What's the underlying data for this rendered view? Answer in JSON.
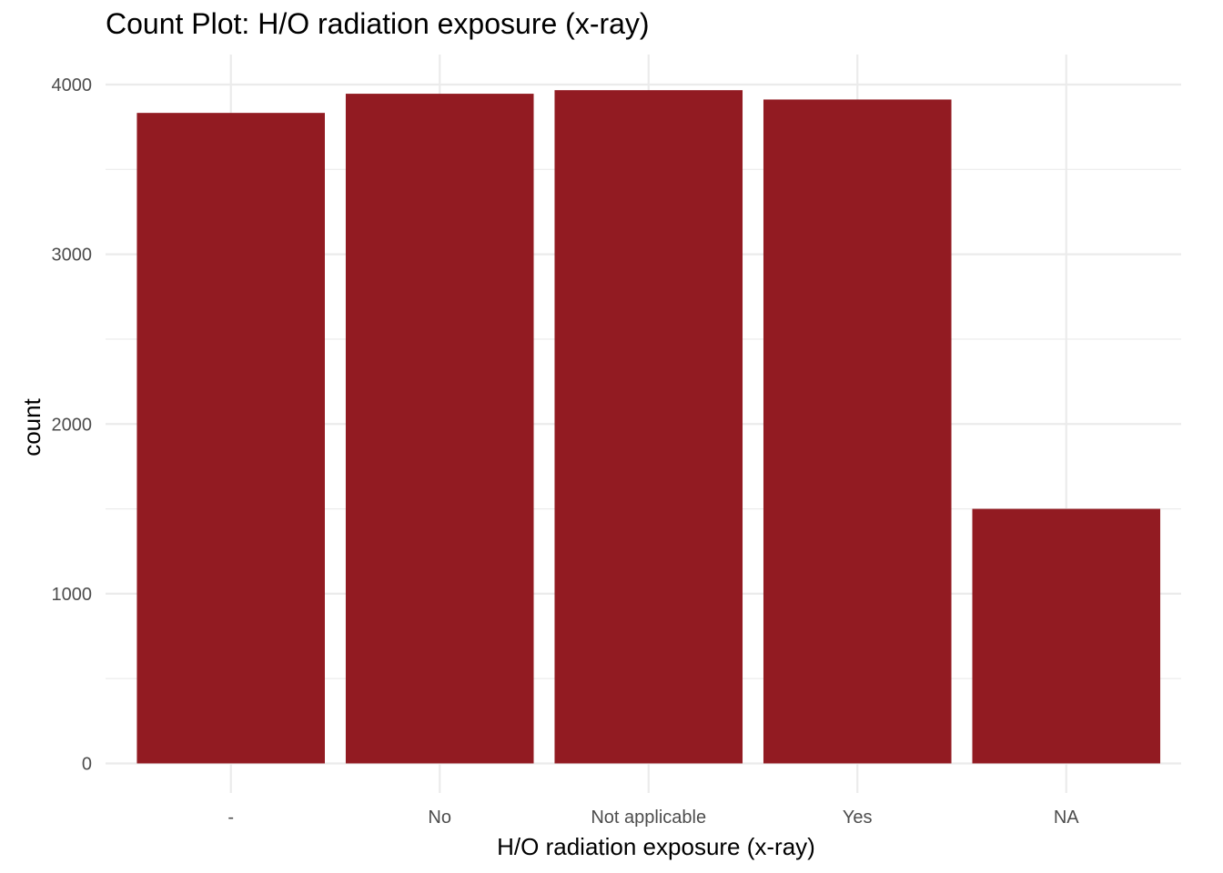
{
  "chart_data": {
    "type": "bar",
    "title": "Count Plot: H/O radiation exposure (x-ray)",
    "xlabel": "H/O radiation exposure (x-ray)",
    "ylabel": "count",
    "categories": [
      "-",
      "No",
      "Not applicable",
      "Yes",
      "NA"
    ],
    "values": [
      3833,
      3946,
      3967,
      3912,
      1500
    ],
    "ylim": [
      0,
      4100
    ],
    "yticks": [
      0,
      1000,
      2000,
      3000,
      4000
    ],
    "grid": true,
    "bar_color": "#921B22",
    "grid_color": "#EBEBEB"
  }
}
